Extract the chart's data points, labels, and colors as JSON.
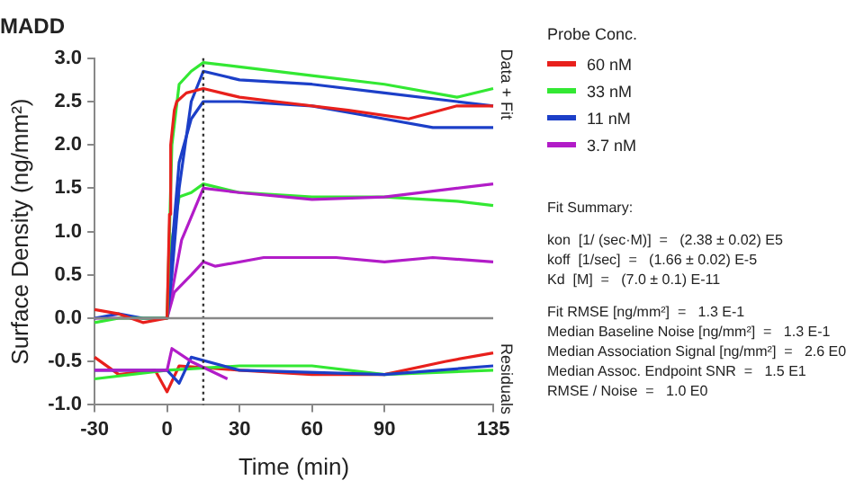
{
  "chart_data": {
    "type": "line",
    "title": "MADD",
    "xlabel": "Time (min)",
    "ylabel": "Surface Density (ng/mm²)",
    "legend_title": "Probe Conc.",
    "legend": "right",
    "marker": "none",
    "line_style": "solid",
    "xlim": [
      -30,
      135
    ],
    "xticks": [
      -30,
      0,
      30,
      60,
      90,
      135
    ],
    "ylim": [
      -1,
      3
    ],
    "yticks": [
      {
        "value": -1,
        "label": "-1.0"
      },
      -0.5,
      {
        "value": 0,
        "label": "0.0"
      },
      0.5,
      {
        "value": 1,
        "label": "1.0"
      },
      1.5,
      {
        "value": 2,
        "label": "2.0"
      },
      2.5,
      {
        "value": 3,
        "label": "3.0"
      }
    ],
    "ref_lines": [
      {
        "axis": "x",
        "value": 15,
        "line_style": "dotted",
        "color": "#333333"
      },
      {
        "axis": "y",
        "value": 0,
        "line_style": "solid",
        "color": "#888888"
      }
    ],
    "series": [
      {
        "name": "60 nM",
        "color": "#e8201c",
        "x": [
          -30,
          -20,
          -10,
          0,
          1,
          1.5,
          3,
          4,
          8,
          15,
          30,
          45,
          75,
          100,
          120,
          135
        ],
        "values": [
          0.1,
          0.05,
          -0.05,
          0,
          1.2,
          2,
          2.4,
          2.5,
          2.6,
          2.65,
          2.55,
          2.5,
          2.4,
          2.3,
          2.45,
          2.45
        ]
      },
      {
        "name": "33 nM",
        "color": "#33e833",
        "x": [
          -30,
          -20,
          -10,
          0,
          1,
          2,
          5,
          10,
          15,
          30,
          60,
          90,
          120,
          135
        ],
        "values": [
          -0.05,
          0,
          0,
          0,
          1,
          2,
          2.7,
          2.85,
          2.95,
          2.9,
          2.8,
          2.7,
          2.55,
          2.65
        ]
      },
      {
        "name": "11 nM",
        "color": "#1c3fc8",
        "x": [
          -30,
          -20,
          -10,
          0,
          2,
          5,
          10,
          15,
          30,
          60,
          90,
          120,
          135
        ],
        "values": [
          0,
          0.05,
          0,
          0,
          0.5,
          1.5,
          2.5,
          2.85,
          2.75,
          2.7,
          2.6,
          2.5,
          2.45
        ]
      },
      {
        "name": "3.7 nM",
        "color": "#b21cc8",
        "x": [
          -30,
          -20,
          -10,
          0,
          6,
          12,
          15,
          30,
          60,
          90,
          120,
          135
        ],
        "values": [
          0,
          0,
          0,
          0,
          0.9,
          1.3,
          1.5,
          1.45,
          1.37,
          1.4,
          1.5,
          1.55
        ]
      },
      {
        "color": "#1c3fc8",
        "x": [
          0,
          2,
          5,
          10,
          15,
          30,
          60,
          90,
          110,
          135
        ],
        "values": [
          0,
          0.8,
          1.8,
          2.3,
          2.5,
          2.5,
          2.45,
          2.3,
          2.2,
          2.2
        ]
      },
      {
        "color": "#33e833",
        "x": [
          0,
          2,
          5,
          10,
          15,
          30,
          60,
          90,
          120,
          135
        ],
        "values": [
          0,
          0.9,
          1.4,
          1.45,
          1.55,
          1.45,
          1.4,
          1.4,
          1.35,
          1.3
        ]
      },
      {
        "color": "#b21cc8",
        "x": [
          0,
          3,
          10,
          15,
          20,
          40,
          70,
          90,
          110,
          135
        ],
        "values": [
          0,
          0.3,
          0.5,
          0.65,
          0.6,
          0.7,
          0.7,
          0.65,
          0.7,
          0.65
        ]
      },
      {
        "color": "#b21cc8",
        "x": [
          -30,
          0,
          2,
          10,
          25
        ],
        "values": [
          -0.6,
          -0.6,
          -0.35,
          -0.5,
          -0.7
        ]
      },
      {
        "color": "#1c3fc8",
        "x": [
          -30,
          0,
          5,
          10,
          30,
          90,
          135
        ],
        "values": [
          -0.6,
          -0.6,
          -0.75,
          -0.45,
          -0.6,
          -0.65,
          -0.55
        ]
      },
      {
        "color": "#33e833",
        "x": [
          -30,
          0,
          30,
          60,
          90,
          135
        ],
        "values": [
          -0.7,
          -0.6,
          -0.55,
          -0.55,
          -0.65,
          -0.6
        ]
      },
      {
        "color": "#e8201c",
        "x": [
          -30,
          -20,
          -5,
          0,
          5,
          30,
          60,
          90,
          115,
          135
        ],
        "values": [
          -0.45,
          -0.65,
          -0.6,
          -0.85,
          -0.55,
          -0.6,
          -0.65,
          -0.65,
          -0.5,
          -0.4
        ]
      }
    ],
    "annotations": [
      "Data + Fit",
      "Residuals",
      "Fit Summary:",
      "kon  [1/ (sec·M)]  =   (2.38 ± 0.02) E5",
      "koff  [1/sec]  =   (1.66 ± 0.02) E-5",
      "Kd  [M]  =   (7.0 ± 0.1) E-11",
      "Fit RMSE [ng/mm²]  =   1.3 E-1",
      "Median Baseline Noise [ng/mm²]  =   1.3 E-1",
      "Median Association Signal [ng/mm²]  =   2.6 E0",
      "Median Assoc. Endpoint SNR  =   1.5 E1",
      "RMSE / Noise  =   1.0 E0"
    ]
  }
}
